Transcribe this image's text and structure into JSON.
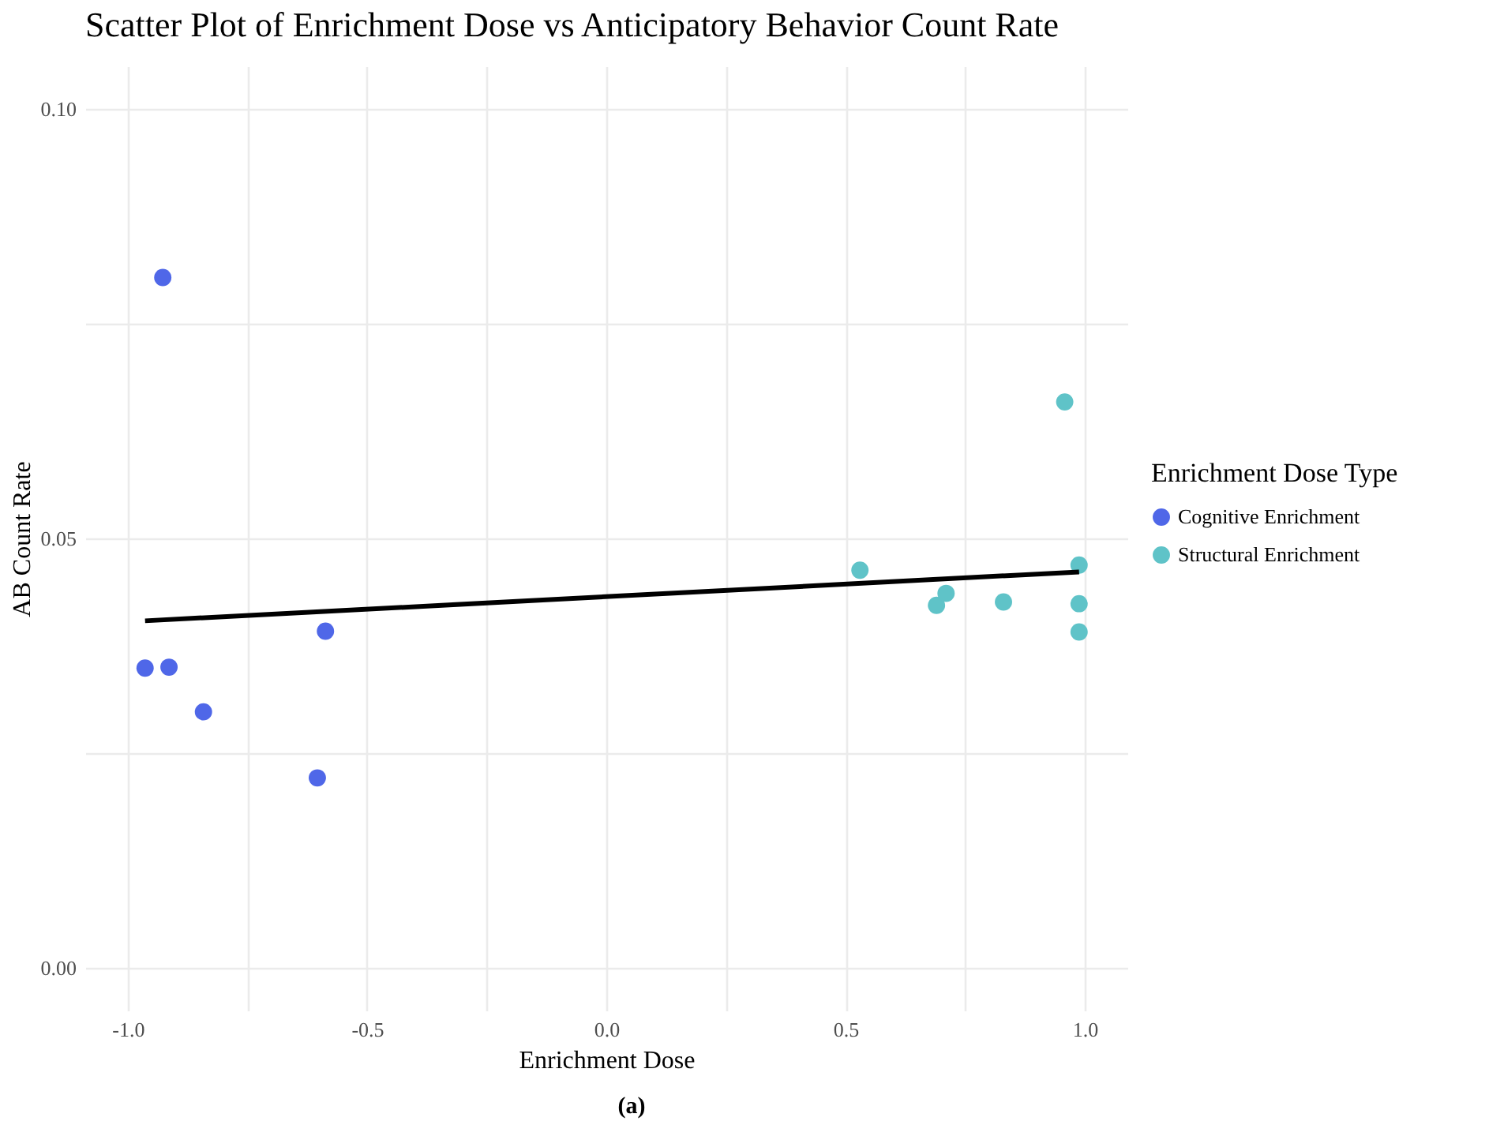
{
  "chart_data": {
    "type": "scatter",
    "title": "Scatter Plot of Enrichment Dose vs Anticipatory Behavior Count Rate",
    "xlabel": "Enrichment Dose",
    "ylabel": "AB Count Rate",
    "legend_title": "Enrichment Dose Type",
    "legend": "right",
    "grid": true,
    "marker": "circle",
    "xlim": [
      -1.089,
      1.089
    ],
    "ylim": [
      -0.005,
      0.105
    ],
    "xticks": [
      {
        "value": -1,
        "label": "-1.0"
      },
      {
        "value": -0.75,
        "label": null
      },
      {
        "value": -0.5,
        "label": "-0.5"
      },
      {
        "value": -0.25,
        "label": null
      },
      {
        "value": 0,
        "label": "0.0"
      },
      {
        "value": 0.25,
        "label": null
      },
      {
        "value": 0.5,
        "label": "0.5"
      },
      {
        "value": 0.75,
        "label": null
      },
      {
        "value": 1,
        "label": "1.0"
      }
    ],
    "yticks": [
      {
        "value": 0,
        "label": "0.00"
      },
      {
        "value": 0.025,
        "label": null
      },
      {
        "value": 0.05,
        "label": "0.05"
      },
      {
        "value": 0.075,
        "label": null
      },
      {
        "value": 0.1,
        "label": "0.10"
      }
    ],
    "series": [
      {
        "name": "Cognitive Enrichment",
        "color": "#4f67e8",
        "x": [
          -0.927,
          -0.964,
          -0.914,
          -0.842,
          -0.587,
          -0.604
        ],
        "values": [
          0.0804,
          0.0349,
          0.035,
          0.0298,
          0.0392,
          0.0221
        ]
      },
      {
        "name": "Structural Enrichment",
        "color": "#5fc3c8",
        "x": [
          0.53,
          0.69,
          0.71,
          0.83,
          0.958,
          0.988,
          0.988,
          0.988
        ],
        "values": [
          0.0463,
          0.0422,
          0.0436,
          0.0426,
          0.0659,
          0.0469,
          0.0424,
          0.0391
        ]
      },
      {
        "type": "line",
        "marker": "none",
        "color": "#000000",
        "x": [
          -0.964,
          0.988
        ],
        "values": [
          0.0404,
          0.0461
        ]
      }
    ],
    "annotations": [
      "(a)"
    ]
  }
}
